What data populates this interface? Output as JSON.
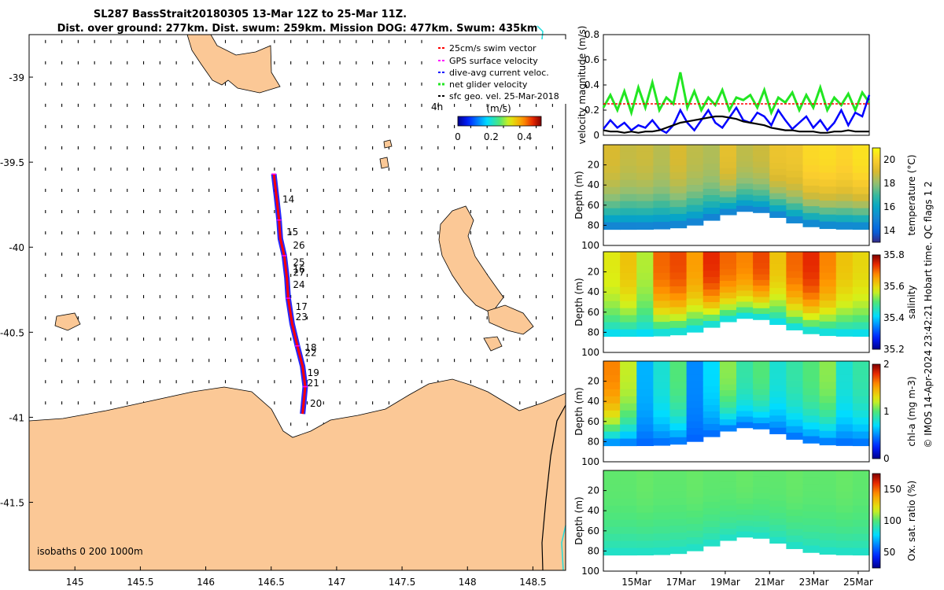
{
  "header": {
    "title_line1": "SL287 BassStrait20180305 13-Mar 12Z to 25-Mar 11Z.",
    "title_line2": "Dist. over ground: 277km. Dist. swum: 259km. Mission DOG: 477km. Swum: 435km"
  },
  "credit": "© IMOS 14-Apr-2024 23:42:21 Hobart time. QC flags 1  2",
  "colors": {
    "land": "#fbc896",
    "swim": "#ff0000",
    "gps": "#ff00ff",
    "dive": "#0000ff",
    "net": "#22e622",
    "geo": "#000000",
    "isobath": "#22dddd"
  },
  "chart_data": [
    {
      "type": "map",
      "xlim": [
        144.65,
        148.75
      ],
      "ylim": [
        -41.9,
        -38.75
      ],
      "x_ticks": [
        "145",
        "145.5",
        "146",
        "146.5",
        "147",
        "147.5",
        "148",
        "148.5"
      ],
      "y_ticks": [
        "-39",
        "-39.5",
        "-40",
        "-40.5",
        "-41",
        "-41.5"
      ],
      "legend": {
        "position": "top-right",
        "entries": [
          "25cm/s swim vector",
          "GPS surface velocity",
          "dive-avg current veloc.",
          "net glider velocity",
          "sfc geo. vel. 25-Mar-2018"
        ]
      },
      "colorbar": {
        "label": "(m/s)",
        "ticks": [
          "0",
          "0.2",
          "0.4"
        ],
        "range": [
          0,
          0.5
        ],
        "tag": "4h"
      },
      "isobaths_label": "isobaths  0   200  1000m",
      "track": [
        [
          146.52,
          -39.57
        ],
        [
          146.54,
          -39.7
        ],
        [
          146.56,
          -39.84
        ],
        [
          146.57,
          -39.95
        ],
        [
          146.6,
          -40.05
        ],
        [
          146.62,
          -40.18
        ],
        [
          146.63,
          -40.3
        ],
        [
          146.66,
          -40.45
        ],
        [
          146.7,
          -40.58
        ],
        [
          146.74,
          -40.7
        ],
        [
          146.76,
          -40.82
        ],
        [
          146.74,
          -40.98
        ]
      ],
      "day_labels": [
        {
          "label": "14",
          "lon": 146.55,
          "lat": -39.72
        },
        {
          "label": "15",
          "lon": 146.58,
          "lat": -39.91
        },
        {
          "label": "26",
          "lon": 146.63,
          "lat": -39.99
        },
        {
          "label": "25",
          "lon": 146.63,
          "lat": -40.09
        },
        {
          "label": "16",
          "lon": 146.63,
          "lat": -40.13
        },
        {
          "label": "27",
          "lon": 146.63,
          "lat": -40.15
        },
        {
          "label": "24",
          "lon": 146.63,
          "lat": -40.22
        },
        {
          "label": "17",
          "lon": 146.65,
          "lat": -40.35
        },
        {
          "label": "23",
          "lon": 146.65,
          "lat": -40.41
        },
        {
          "label": "18",
          "lon": 146.72,
          "lat": -40.59
        },
        {
          "label": "22",
          "lon": 146.72,
          "lat": -40.62
        },
        {
          "label": "19",
          "lon": 146.74,
          "lat": -40.74
        },
        {
          "label": "21",
          "lon": 146.74,
          "lat": -40.8
        },
        {
          "label": "20",
          "lon": 146.76,
          "lat": -40.92
        }
      ]
    },
    {
      "type": "line",
      "ylabel": "velocity magnitude (m/s)",
      "ylim": [
        0,
        0.8
      ],
      "y_ticks": [
        "0",
        "0.2",
        "0.4",
        "0.6",
        "0.8"
      ],
      "series": [
        {
          "key": "net",
          "values": [
            0.22,
            0.32,
            0.2,
            0.35,
            0.18,
            0.38,
            0.22,
            0.42,
            0.2,
            0.3,
            0.25,
            0.5,
            0.22,
            0.35,
            0.2,
            0.3,
            0.24,
            0.36,
            0.2,
            0.3,
            0.28,
            0.32,
            0.22,
            0.36,
            0.18,
            0.3,
            0.26,
            0.34,
            0.2,
            0.32,
            0.22,
            0.38,
            0.2,
            0.3,
            0.24,
            0.33,
            0.2,
            0.34,
            0.26
          ]
        },
        {
          "key": "dive",
          "values": [
            0.05,
            0.12,
            0.06,
            0.1,
            0.04,
            0.08,
            0.06,
            0.12,
            0.05,
            0.02,
            0.08,
            0.2,
            0.1,
            0.04,
            0.12,
            0.2,
            0.1,
            0.06,
            0.14,
            0.22,
            0.12,
            0.1,
            0.18,
            0.15,
            0.08,
            0.2,
            0.12,
            0.05,
            0.1,
            0.15,
            0.06,
            0.12,
            0.04,
            0.1,
            0.2,
            0.08,
            0.18,
            0.15,
            0.32
          ]
        },
        {
          "key": "swim",
          "values": [
            0.25,
            0.25,
            0.25,
            0.25,
            0.25,
            0.25,
            0.25,
            0.25,
            0.25,
            0.25,
            0.25,
            0.25,
            0.25,
            0.25,
            0.25,
            0.25,
            0.25,
            0.25,
            0.25,
            0.25,
            0.25,
            0.25,
            0.25,
            0.25,
            0.25,
            0.25,
            0.25,
            0.25,
            0.25,
            0.25,
            0.25,
            0.25,
            0.25,
            0.25,
            0.25,
            0.25,
            0.25,
            0.25,
            0.25
          ]
        },
        {
          "key": "geo",
          "values": [
            0.04,
            0.03,
            0.03,
            0.02,
            0.03,
            0.02,
            0.03,
            0.03,
            0.04,
            0.06,
            0.08,
            0.1,
            0.11,
            0.12,
            0.13,
            0.14,
            0.15,
            0.15,
            0.14,
            0.13,
            0.11,
            0.1,
            0.09,
            0.08,
            0.06,
            0.05,
            0.04,
            0.04,
            0.03,
            0.03,
            0.03,
            0.02,
            0.02,
            0.03,
            0.03,
            0.04,
            0.03,
            0.03,
            0.03
          ]
        }
      ]
    },
    {
      "type": "heatmap",
      "name": "temperature",
      "ylabel": "Depth (m)",
      "clabel": "temperature (°C)",
      "crange": [
        13,
        21
      ],
      "cticks": [
        "14",
        "16",
        "18",
        "20"
      ],
      "y_ticks": [
        "20",
        "40",
        "60",
        "80",
        "100"
      ],
      "surface": [
        19,
        18.7,
        18.8,
        18.5,
        19,
        18.6,
        18.4,
        19.3,
        18.6,
        18.8,
        19.5,
        19.6,
        20.2,
        20.3,
        20.1,
        20.4
      ],
      "deep": 14.5
    },
    {
      "type": "heatmap",
      "name": "salinity",
      "ylabel": "Depth (m)",
      "clabel": "salinity",
      "crange": [
        35.2,
        35.8
      ],
      "cticks": [
        "35.2",
        "35.4",
        "35.6",
        "35.8"
      ],
      "y_ticks": [
        "20",
        "40",
        "60",
        "80",
        "100"
      ],
      "surface": [
        35.58,
        35.62,
        35.55,
        35.7,
        35.72,
        35.66,
        35.74,
        35.7,
        35.68,
        35.72,
        35.62,
        35.7,
        35.74,
        35.68,
        35.62,
        35.6
      ],
      "deep": 35.4
    },
    {
      "type": "heatmap",
      "name": "chlorophyll",
      "ylabel": "Depth (m)",
      "clabel": "chl-a (mg m-3)",
      "crange": [
        0,
        2
      ],
      "cticks": [
        "0",
        "1",
        "2"
      ],
      "y_ticks": [
        "20",
        "40",
        "60",
        "80",
        "100"
      ],
      "surface": [
        1.6,
        1.2,
        0.6,
        0.8,
        1.0,
        0.5,
        0.7,
        1.1,
        0.9,
        1.0,
        0.8,
        0.9,
        1.0,
        1.1,
        0.8,
        0.9
      ],
      "deep": 0.4
    },
    {
      "type": "heatmap",
      "name": "oxygen",
      "ylabel": "Depth (m)",
      "clabel": "Ox. sat. ratio (%)",
      "crange": [
        25,
        175
      ],
      "cticks": [
        "50",
        "100",
        "150"
      ],
      "y_ticks": [
        "20",
        "40",
        "60",
        "80",
        "100"
      ],
      "surface": [
        102,
        102,
        103,
        102,
        102,
        103,
        102,
        102,
        103,
        102,
        102,
        103,
        102,
        102,
        103,
        102
      ],
      "deep": 85
    },
    {
      "type": "axis",
      "x_ticks": [
        "15Mar",
        "17Mar",
        "19Mar",
        "21Mar",
        "23Mar",
        "25Mar"
      ]
    }
  ]
}
